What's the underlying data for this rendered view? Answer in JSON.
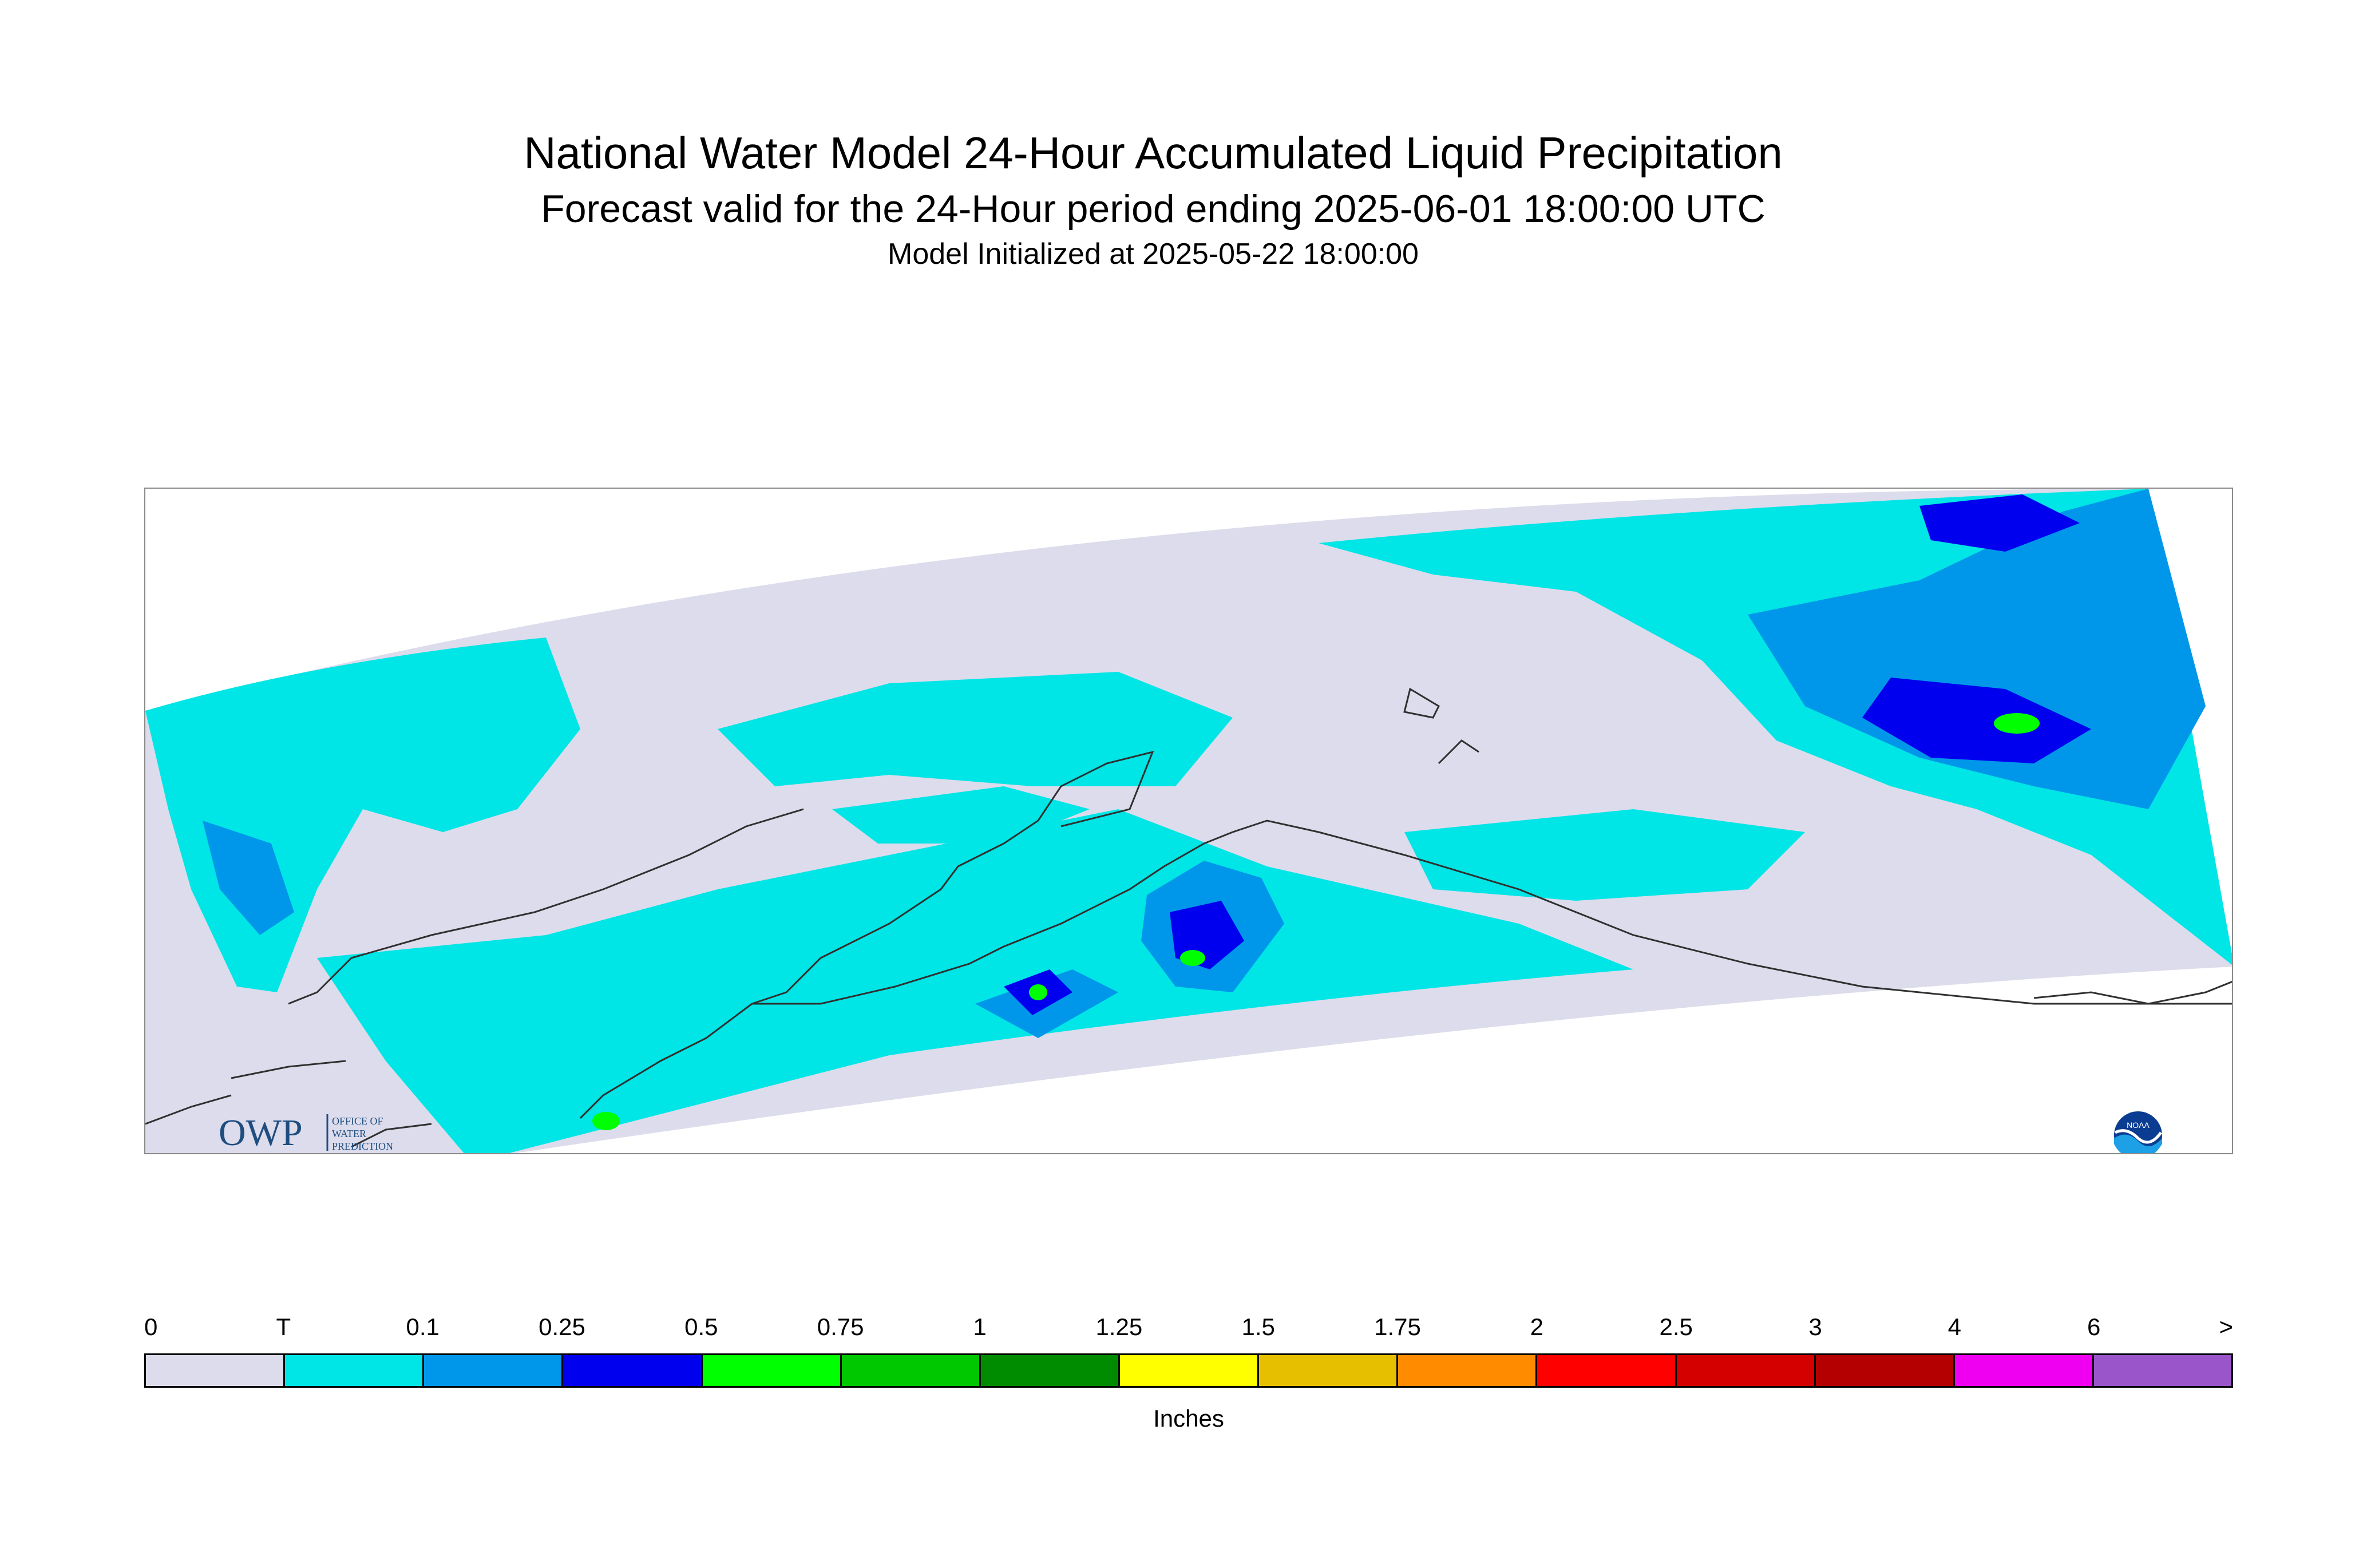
{
  "title": "National Water Model 24-Hour Accumulated Liquid Precipitation",
  "subtitle": "Forecast valid for the 24-Hour period ending 2025-06-01 18:00:00 UTC",
  "init_text": "Model Initialized at 2025-05-22 18:00:00",
  "logos": {
    "owp_mark": "OWP",
    "owp_text_lines": [
      "OFFICE OF",
      "WATER",
      "PREDICTION"
    ],
    "noaa_text": "NOAA"
  },
  "colors": {
    "no_data_fill": "#dcdcec",
    "light_cyan": "#00e5e5",
    "sky_blue": "#0097ea",
    "deep_blue": "#0000ee",
    "bright_green": "#00ff00",
    "coastline": "#303030",
    "frame_border": "#8a8a8a"
  },
  "legend": {
    "unit_label": "Inches",
    "labels": [
      "0",
      "T",
      "0.1",
      "0.25",
      "0.5",
      "0.75",
      "1",
      "1.25",
      "1.5",
      "1.75",
      "2",
      "2.5",
      "3",
      "4",
      "6",
      ">"
    ],
    "bins": [
      {
        "range": "0-T",
        "color": "#dcdcec"
      },
      {
        "range": "T-0.1",
        "color": "#00e5e5"
      },
      {
        "range": "0.1-0.25",
        "color": "#0097ea"
      },
      {
        "range": "0.25-0.5",
        "color": "#0000ee"
      },
      {
        "range": "0.5-0.75",
        "color": "#00ff00"
      },
      {
        "range": "0.75-1",
        "color": "#00c800"
      },
      {
        "range": "1-1.25",
        "color": "#008c00"
      },
      {
        "range": "1.25-1.5",
        "color": "#ffff00"
      },
      {
        "range": "1.5-1.75",
        "color": "#e6bf00"
      },
      {
        "range": "1.75-2",
        "color": "#ff8c00"
      },
      {
        "range": "2-2.5",
        "color": "#ff0000"
      },
      {
        "range": "2.5-3",
        "color": "#d40000"
      },
      {
        "range": "3-4",
        "color": "#b40000"
      },
      {
        "range": "4-6",
        "color": "#f000f0"
      },
      {
        "range": ">6",
        "color": "#9955c9"
      }
    ]
  }
}
